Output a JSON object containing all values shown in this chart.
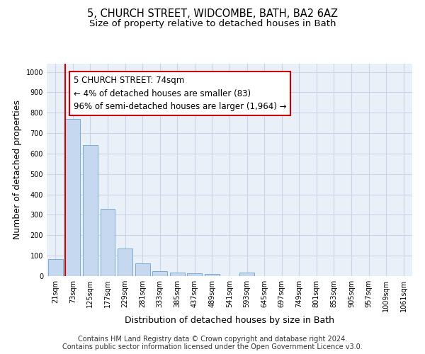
{
  "title_line1": "5, CHURCH STREET, WIDCOMBE, BATH, BA2 6AZ",
  "title_line2": "Size of property relative to detached houses in Bath",
  "xlabel": "Distribution of detached houses by size in Bath",
  "ylabel": "Number of detached properties",
  "categories": [
    "21sqm",
    "73sqm",
    "125sqm",
    "177sqm",
    "229sqm",
    "281sqm",
    "333sqm",
    "385sqm",
    "437sqm",
    "489sqm",
    "541sqm",
    "593sqm",
    "645sqm",
    "697sqm",
    "749sqm",
    "801sqm",
    "853sqm",
    "905sqm",
    "957sqm",
    "1009sqm",
    "1061sqm"
  ],
  "bar_heights": [
    83,
    770,
    640,
    330,
    135,
    62,
    25,
    18,
    13,
    10,
    0,
    18,
    0,
    0,
    0,
    0,
    0,
    0,
    0,
    0,
    0
  ],
  "bar_color": "#c5d8f0",
  "bar_edge_color": "#7aabcf",
  "highlight_color": "#cc0000",
  "annotation_text": "5 CHURCH STREET: 74sqm\n← 4% of detached houses are smaller (83)\n96% of semi-detached houses are larger (1,964) →",
  "annotation_box_color": "#ffffff",
  "annotation_box_edge_color": "#cc0000",
  "ylim": [
    0,
    1040
  ],
  "yticks": [
    0,
    100,
    200,
    300,
    400,
    500,
    600,
    700,
    800,
    900,
    1000
  ],
  "grid_color": "#c8d4e8",
  "background_color": "#eaf0f8",
  "footer_line1": "Contains HM Land Registry data © Crown copyright and database right 2024.",
  "footer_line2": "Contains public sector information licensed under the Open Government Licence v3.0.",
  "title_fontsize": 10.5,
  "subtitle_fontsize": 9.5,
  "axis_label_fontsize": 9,
  "tick_fontsize": 7,
  "annotation_fontsize": 8.5,
  "footer_fontsize": 7
}
